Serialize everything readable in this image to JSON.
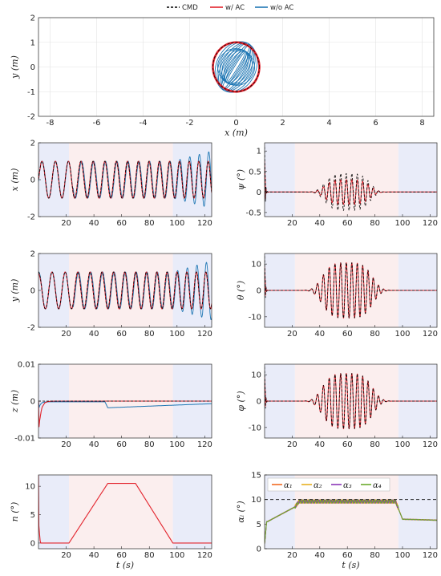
{
  "legend": {
    "items": [
      {
        "label": "CMD",
        "color": "#000000",
        "dash": true
      },
      {
        "label": "w/ AC",
        "color": "#e3232c",
        "dash": false
      },
      {
        "label": "w/o AC",
        "color": "#1f77b4",
        "dash": false
      }
    ]
  },
  "shading": {
    "phases": [
      {
        "from": 0,
        "to": 22,
        "color": "#e9ecf9"
      },
      {
        "from": 22,
        "to": 97,
        "color": "#fbeeee"
      },
      {
        "from": 97,
        "to": 125,
        "color": "#e9ecf9"
      }
    ]
  },
  "chart_data": [
    {
      "id": "xy",
      "type": "line",
      "xlabel": "x (m)",
      "ylabel": "y (m)",
      "xlim": [
        -8.5,
        8.5
      ],
      "ylim": [
        -2,
        2
      ],
      "xticks": [
        -8,
        -6,
        -4,
        -2,
        0,
        2,
        4,
        6,
        8
      ],
      "yticks": [
        -2,
        -1,
        0,
        1,
        2
      ],
      "grid": true,
      "series": [
        {
          "name": "CMD",
          "kind": "circle",
          "radius": 1.0
        },
        {
          "name": "w/ AC",
          "kind": "circle",
          "radius": 1.0
        },
        {
          "name": "w/o AC",
          "kind": "ellipses",
          "max_radius": 1.5,
          "tilt_deg": 62
        }
      ]
    },
    {
      "id": "x_t",
      "type": "line",
      "xlabel": "",
      "ylabel": "x (m)",
      "xlim": [
        0,
        125
      ],
      "ylim": [
        -2,
        2
      ],
      "xticks": [
        20,
        40,
        60,
        80,
        100,
        120
      ],
      "yticks": [
        -2,
        0,
        2
      ],
      "signal": "sin",
      "series": [
        {
          "name": "CMD",
          "amplitude": 1.0
        },
        {
          "name": "w/ AC",
          "amplitude": 1.0
        },
        {
          "name": "w/o AC",
          "amplitude": 1.0,
          "drift_amplitude": 1.55,
          "drift_start": 97
        }
      ]
    },
    {
      "id": "psi_t",
      "type": "line",
      "xlabel": "",
      "ylabel": "ψ (°)",
      "xlim": [
        0,
        125
      ],
      "ylim": [
        -0.6,
        1.2
      ],
      "xticks": [
        20,
        40,
        60,
        80,
        100,
        120
      ],
      "yticks": [
        -0.5,
        0,
        0.5,
        1
      ],
      "initial_spike": 1.1,
      "envelope_peak_time": 60,
      "envelope_width": 18,
      "series": [
        {
          "name": "CMD",
          "peak": 0.45
        },
        {
          "name": "w/ AC",
          "peak": 0.3
        }
      ]
    },
    {
      "id": "y_t",
      "type": "line",
      "xlabel": "",
      "ylabel": "y (m)",
      "xlim": [
        0,
        125
      ],
      "ylim": [
        -2,
        2
      ],
      "xticks": [
        20,
        40,
        60,
        80,
        100,
        120
      ],
      "yticks": [
        -2,
        0,
        2
      ],
      "signal": "cos",
      "series": [
        {
          "name": "CMD",
          "amplitude": 1.0
        },
        {
          "name": "w/ AC",
          "amplitude": 1.0
        },
        {
          "name": "w/o AC",
          "amplitude": 1.0,
          "drift_amplitude": 1.6,
          "drift_start": 97
        }
      ]
    },
    {
      "id": "theta_t",
      "type": "line",
      "xlabel": "",
      "ylabel": "θ (°)",
      "xlim": [
        0,
        125
      ],
      "ylim": [
        -14,
        14
      ],
      "xticks": [
        20,
        40,
        60,
        80,
        100,
        120
      ],
      "yticks": [
        -10,
        0,
        10
      ],
      "initial_spike": 13,
      "envelope_peak_time": 60,
      "envelope_width": 20,
      "series": [
        {
          "name": "CMD",
          "peak": 10.5
        },
        {
          "name": "w/ AC",
          "peak": 10.5
        }
      ]
    },
    {
      "id": "z_t",
      "type": "line",
      "xlabel": "",
      "ylabel": "z (m)",
      "xlim": [
        0,
        125
      ],
      "ylim": [
        -0.01,
        0.01
      ],
      "xticks": [
        20,
        40,
        60,
        80,
        100,
        120
      ],
      "yticks": [
        -0.01,
        0,
        0.01
      ],
      "series": [
        {
          "name": "CMD",
          "level": 0
        },
        {
          "name": "w/ AC",
          "initial_dip": -0.0072,
          "recovery_time": 6
        },
        {
          "name": "w/o AC",
          "initial_dip": -0.0015,
          "step_time": 50,
          "step_level": -0.0018,
          "final_level": -0.0007
        }
      ]
    },
    {
      "id": "phi_t",
      "type": "line",
      "xlabel": "",
      "ylabel": "φ (°)",
      "xlim": [
        0,
        125
      ],
      "ylim": [
        -14,
        14
      ],
      "xticks": [
        20,
        40,
        60,
        80,
        100,
        120
      ],
      "yticks": [
        -10,
        0,
        10
      ],
      "initial_spike": 13,
      "envelope_peak_time": 60,
      "envelope_width": 20,
      "series": [
        {
          "name": "CMD",
          "peak": 10.5
        },
        {
          "name": "w/ AC",
          "peak": 10.5
        }
      ]
    },
    {
      "id": "n_t",
      "type": "line",
      "xlabel": "t (s)",
      "ylabel": "n (°)",
      "xlim": [
        0,
        125
      ],
      "ylim": [
        -1,
        12
      ],
      "xticks": [
        20,
        40,
        60,
        80,
        100,
        120
      ],
      "yticks": [
        0,
        5,
        10
      ],
      "series": [
        {
          "name": "w/ AC",
          "x": [
            0,
            0.3,
            0.8,
            1.2,
            1.6,
            22,
            50,
            70,
            97,
            125
          ],
          "y": [
            12,
            3,
            1.5,
            0.4,
            0,
            0,
            10.5,
            10.5,
            0,
            0
          ]
        }
      ]
    },
    {
      "id": "alpha_t",
      "type": "line",
      "xlabel": "t (s)",
      "ylabel": "αᵢ (°)",
      "xlim": [
        0,
        125
      ],
      "ylim": [
        0,
        15
      ],
      "xticks": [
        20,
        40,
        60,
        80,
        100,
        120
      ],
      "yticks": [
        0,
        5,
        10,
        15
      ],
      "reference": 10,
      "legend_position": "top-left",
      "series": [
        {
          "name": "α₁",
          "color": "#f26b21"
        },
        {
          "name": "α₂",
          "color": "#e8b020"
        },
        {
          "name": "α₃",
          "color": "#8a35b8"
        },
        {
          "name": "α₄",
          "color": "#6aaa2c"
        }
      ],
      "profile": {
        "x": [
          0,
          2,
          22,
          25,
          95,
          100,
          125
        ],
        "y": [
          5.5,
          5.5,
          8.5,
          9.6,
          9.6,
          6.0,
          5.8
        ]
      }
    }
  ]
}
